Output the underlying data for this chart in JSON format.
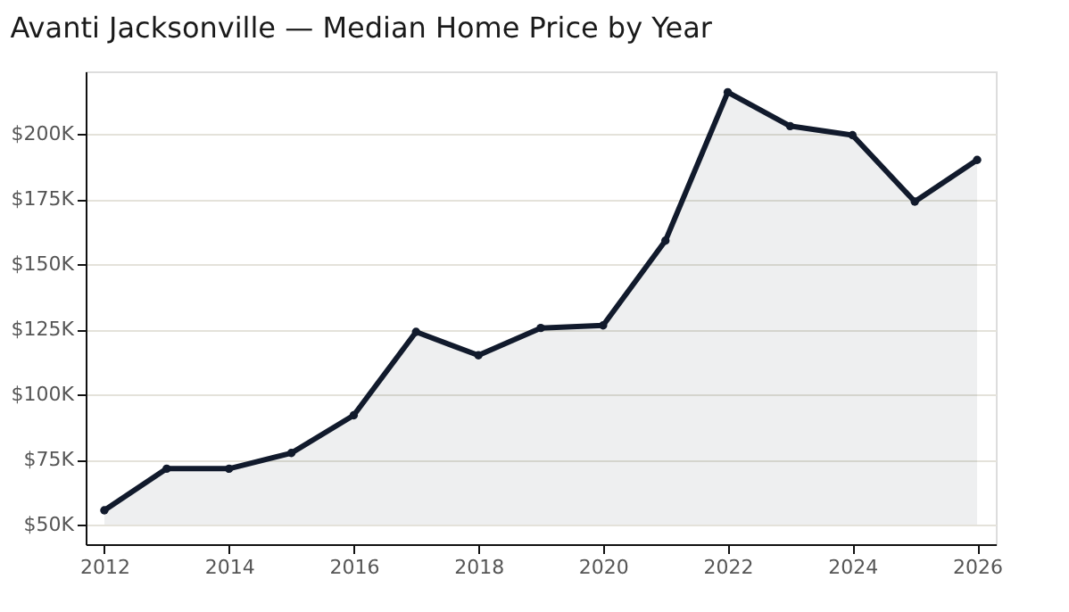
{
  "chart_data": {
    "type": "area",
    "title": "Avanti Jacksonville — Median Home Price by Year",
    "x": [
      2012,
      2013,
      2014,
      2015,
      2016,
      2017,
      2018,
      2019,
      2020,
      2021,
      2022,
      2023,
      2024,
      2025,
      2026
    ],
    "series": [
      {
        "color": "#111a2c",
        "values": [
          55500,
          71500,
          71500,
          77500,
          92000,
          124000,
          115000,
          125500,
          126500,
          159000,
          216000,
          203000,
          199500,
          174000,
          190000
        ]
      }
    ],
    "xlim": [
      2011.7,
      2026.3
    ],
    "xticks": [
      2012,
      2014,
      2016,
      2018,
      2020,
      2022,
      2024,
      2026
    ],
    "ylim": [
      42500,
      224000
    ],
    "yticks": [
      {
        "value": 50000,
        "label": "$50K"
      },
      {
        "value": 75000,
        "label": "$75K"
      },
      {
        "value": 100000,
        "label": "$100K"
      },
      {
        "value": 125000,
        "label": "$125K"
      },
      {
        "value": 150000,
        "label": "$150K"
      },
      {
        "value": 175000,
        "label": "$175K"
      },
      {
        "value": 200000,
        "label": "$200K"
      }
    ],
    "grid": "y",
    "marker": "circle",
    "line_style": "solid"
  }
}
